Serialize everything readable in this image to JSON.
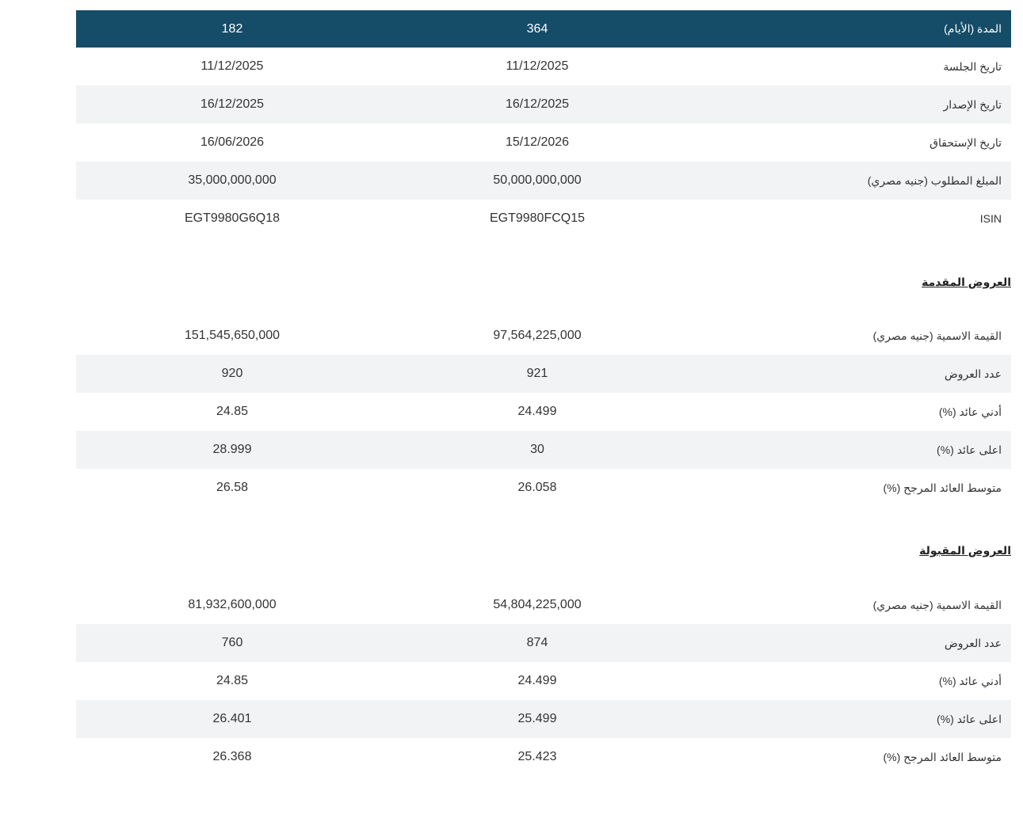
{
  "auction": {
    "header": {
      "label": "المدة (الأيام)",
      "col_a": "364",
      "col_b": "182"
    },
    "rows": [
      {
        "label": "تاريخ الجلسة",
        "col_a": "11/12/2025",
        "col_b": "11/12/2025"
      },
      {
        "label": "تاريخ الإصدار",
        "col_a": "16/12/2025",
        "col_b": "16/12/2025"
      },
      {
        "label": "تاريخ الإستحقاق",
        "col_a": "15/12/2026",
        "col_b": "16/06/2026"
      },
      {
        "label": "المبلغ المطلوب (جنيه مصري)",
        "col_a": "50,000,000,000",
        "col_b": "35,000,000,000"
      },
      {
        "label": "ISIN",
        "col_a": "EGT9980FCQ15",
        "col_b": "EGT9980G6Q18"
      }
    ]
  },
  "submitted_bids": {
    "title": "العروض المقدمة",
    "rows": [
      {
        "label": "القيمة الاسمية (جنيه مصري)",
        "col_a": "97,564,225,000",
        "col_b": "151,545,650,000"
      },
      {
        "label": "عدد العروض",
        "col_a": "921",
        "col_b": "920"
      },
      {
        "label": "أدني عائد (%)",
        "col_a": "24.499",
        "col_b": "24.85"
      },
      {
        "label": "اعلى عائد (%)",
        "col_a": "30",
        "col_b": "28.999"
      },
      {
        "label": "متوسط العائد المرجح (%)",
        "col_a": "26.058",
        "col_b": "26.58"
      }
    ]
  },
  "accepted_bids": {
    "title": "العروض المقبولة",
    "rows": [
      {
        "label": "القيمة الاسمية (جنيه مصري)",
        "col_a": "54,804,225,000",
        "col_b": "81,932,600,000"
      },
      {
        "label": "عدد العروض",
        "col_a": "874",
        "col_b": "760"
      },
      {
        "label": "أدني عائد (%)",
        "col_a": "24.499",
        "col_b": "24.85"
      },
      {
        "label": "اعلى عائد (%)",
        "col_a": "25.499",
        "col_b": "26.401"
      },
      {
        "label": "متوسط العائد المرجح (%)",
        "col_a": "25.423",
        "col_b": "26.368"
      }
    ]
  },
  "colors": {
    "header_bg": "#154c68",
    "alt_row_bg": "#f2f3f4",
    "text": "#333333"
  }
}
